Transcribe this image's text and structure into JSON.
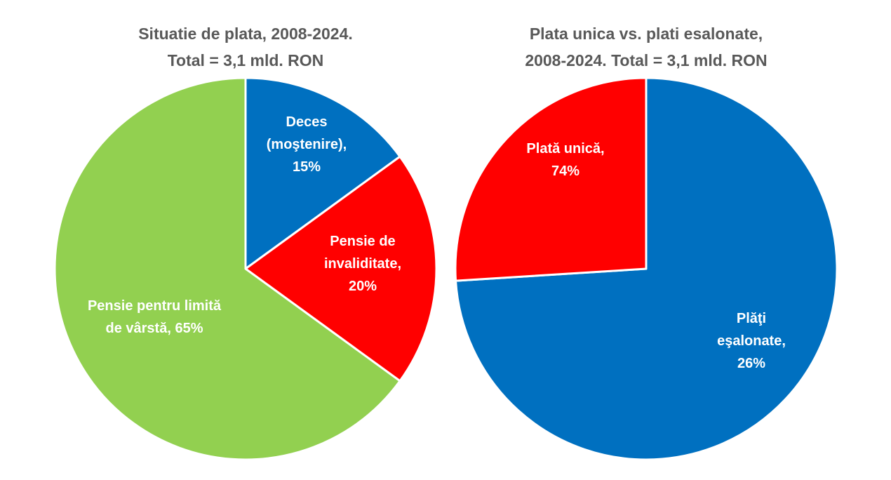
{
  "chart_data": [
    {
      "type": "pie",
      "title_lines": [
        "Situatie de plata, 2008-2024.",
        "Total = 3,1 mld. RON"
      ],
      "slices": [
        {
          "name": "Deces (moştenire)",
          "value": 15,
          "color": "#0070C0",
          "label_lines": [
            "Deces",
            "(moştenire),",
            "15%"
          ]
        },
        {
          "name": "Pensie de invaliditate",
          "value": 20,
          "color": "#FF0000",
          "label_lines": [
            "Pensie de",
            "invaliditate,",
            "20%"
          ]
        },
        {
          "name": "Pensie pentru limită de vârstă",
          "value": 65,
          "color": "#92D050",
          "label_lines": [
            "Pensie pentru limită",
            "de vârstă, 65%"
          ]
        }
      ]
    },
    {
      "type": "pie",
      "title_lines": [
        "Plata unica vs. plati esalonate,",
        "2008-2024. Total = 3,1 mld. RON"
      ],
      "slices": [
        {
          "name": "Plată unică",
          "value": 74,
          "color": "#0070C0",
          "label_lines": [
            "Plată unică,",
            "74%"
          ]
        },
        {
          "name": "Plăţi eşalonate",
          "value": 26,
          "color": "#FF0000",
          "label_lines": [
            "Plăţi",
            "eşalonate,",
            "26%"
          ]
        }
      ]
    }
  ]
}
